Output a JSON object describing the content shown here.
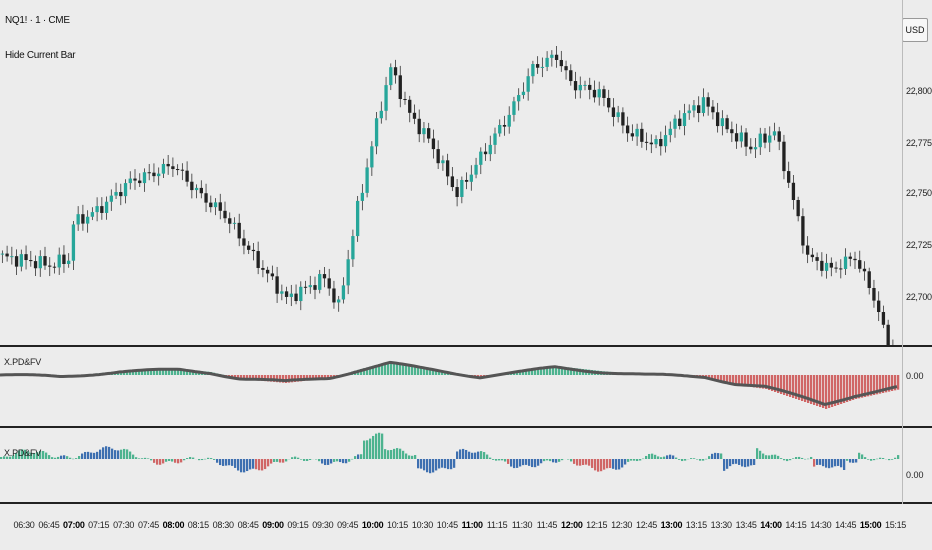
{
  "header": {
    "symbol": "NQ1! · 1 · CME",
    "subtitle": "Hide Current Bar",
    "currency": "USD"
  },
  "price_axis": {
    "labels": [
      "22,800.00",
      "22,775.00",
      "22,750.00",
      "22,725.00",
      "22,700.00"
    ]
  },
  "indicators": [
    {
      "label": "X.PD&FV",
      "value": "0.00"
    },
    {
      "label": "X.PD&FV",
      "value": "0.00"
    }
  ],
  "time_axis": {
    "labels": [
      {
        "text": "06:30",
        "bold": false
      },
      {
        "text": "06:45",
        "bold": false
      },
      {
        "text": "07:00",
        "bold": true
      },
      {
        "text": "07:15",
        "bold": false
      },
      {
        "text": "07:30",
        "bold": false
      },
      {
        "text": "07:45",
        "bold": false
      },
      {
        "text": "08:00",
        "bold": true
      },
      {
        "text": "08:15",
        "bold": false
      },
      {
        "text": "08:30",
        "bold": false
      },
      {
        "text": "08:45",
        "bold": false
      },
      {
        "text": "09:00",
        "bold": true
      },
      {
        "text": "09:15",
        "bold": false
      },
      {
        "text": "09:30",
        "bold": false
      },
      {
        "text": "09:45",
        "bold": false
      },
      {
        "text": "10:00",
        "bold": true
      },
      {
        "text": "10:15",
        "bold": false
      },
      {
        "text": "10:30",
        "bold": false
      },
      {
        "text": "10:45",
        "bold": false
      },
      {
        "text": "11:00",
        "bold": true
      },
      {
        "text": "11:15",
        "bold": false
      },
      {
        "text": "11:30",
        "bold": false
      },
      {
        "text": "11:45",
        "bold": false
      },
      {
        "text": "12:00",
        "bold": true
      },
      {
        "text": "12:15",
        "bold": false
      },
      {
        "text": "12:30",
        "bold": false
      },
      {
        "text": "12:45",
        "bold": false
      },
      {
        "text": "13:00",
        "bold": true
      },
      {
        "text": "13:15",
        "bold": false
      },
      {
        "text": "13:30",
        "bold": false
      },
      {
        "text": "13:45",
        "bold": false
      },
      {
        "text": "14:00",
        "bold": true
      },
      {
        "text": "14:15",
        "bold": false
      },
      {
        "text": "14:30",
        "bold": false
      },
      {
        "text": "14:45",
        "bold": false
      },
      {
        "text": "15:00",
        "bold": true
      },
      {
        "text": "15:15",
        "bold": false
      }
    ]
  },
  "chart_data": {
    "type": "candlestick",
    "ylim": [
      22680,
      22835
    ],
    "price_path": [
      [
        0,
        22722
      ],
      [
        6,
        22720
      ],
      [
        10,
        22718
      ],
      [
        14,
        22721
      ],
      [
        15,
        22738
      ],
      [
        20,
        22744
      ],
      [
        27,
        22758
      ],
      [
        32,
        22762
      ],
      [
        36,
        22766
      ],
      [
        42,
        22751
      ],
      [
        47,
        22742
      ],
      [
        53,
        22722
      ],
      [
        60,
        22702
      ],
      [
        68,
        22712
      ],
      [
        71,
        22698
      ],
      [
        75,
        22745
      ],
      [
        80,
        22795
      ],
      [
        82,
        22812
      ],
      [
        86,
        22790
      ],
      [
        90,
        22778
      ],
      [
        96,
        22752
      ],
      [
        102,
        22773
      ],
      [
        107,
        22790
      ],
      [
        112,
        22812
      ],
      [
        117,
        22818
      ],
      [
        120,
        22805
      ],
      [
        126,
        22800
      ],
      [
        132,
        22782
      ],
      [
        138,
        22775
      ],
      [
        143,
        22788
      ],
      [
        148,
        22796
      ],
      [
        152,
        22785
      ],
      [
        158,
        22774
      ],
      [
        163,
        22782
      ],
      [
        165,
        22766
      ],
      [
        170,
        22722
      ],
      [
        175,
        22716
      ],
      [
        180,
        22722
      ],
      [
        184,
        22703
      ],
      [
        188,
        22672
      ]
    ],
    "colors": {
      "up": "#26a69a",
      "down": "#222222",
      "hist_positive": "#4db38f",
      "hist_negative": "#d06666",
      "hist_blue": "#3d6fb0",
      "trend_line": "#555555"
    },
    "colors_note": "palette"
  }
}
